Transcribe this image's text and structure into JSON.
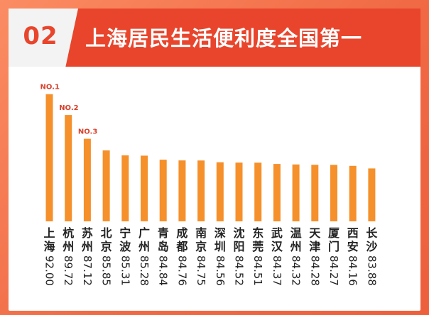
{
  "header": {
    "number": "02",
    "title": "上海居民生活便利度全国第一"
  },
  "colors": {
    "bar": "#f5902b",
    "rank_label": "#d8412b",
    "header_bg": "#e8452c",
    "text": "#222222"
  },
  "chart_data": {
    "type": "bar",
    "categories": [
      "上海",
      "杭州",
      "苏州",
      "北京",
      "宁波",
      "广州",
      "青岛",
      "成都",
      "南京",
      "深圳",
      "沈阳",
      "东莞",
      "武汉",
      "温州",
      "天津",
      "厦门",
      "西安",
      "长沙"
    ],
    "values": [
      92.0,
      89.72,
      87.12,
      85.85,
      85.31,
      85.28,
      84.84,
      84.76,
      84.75,
      84.56,
      84.52,
      84.51,
      84.37,
      84.32,
      84.28,
      84.27,
      84.16,
      83.88
    ],
    "value_labels": [
      "92.00",
      "89.72",
      "87.12",
      "85.85",
      "85.31",
      "85.28",
      "84.84",
      "84.76",
      "84.75",
      "84.56",
      "84.52",
      "84.51",
      "84.37",
      "84.32",
      "84.28",
      "84.27",
      "84.16",
      "83.88"
    ],
    "annotations": [
      {
        "index": 0,
        "text": "NO.1"
      },
      {
        "index": 1,
        "text": "NO.2"
      },
      {
        "index": 2,
        "text": "NO.3"
      }
    ],
    "title": "",
    "xlabel": "",
    "ylabel": "",
    "grid": false,
    "legend": "none"
  }
}
